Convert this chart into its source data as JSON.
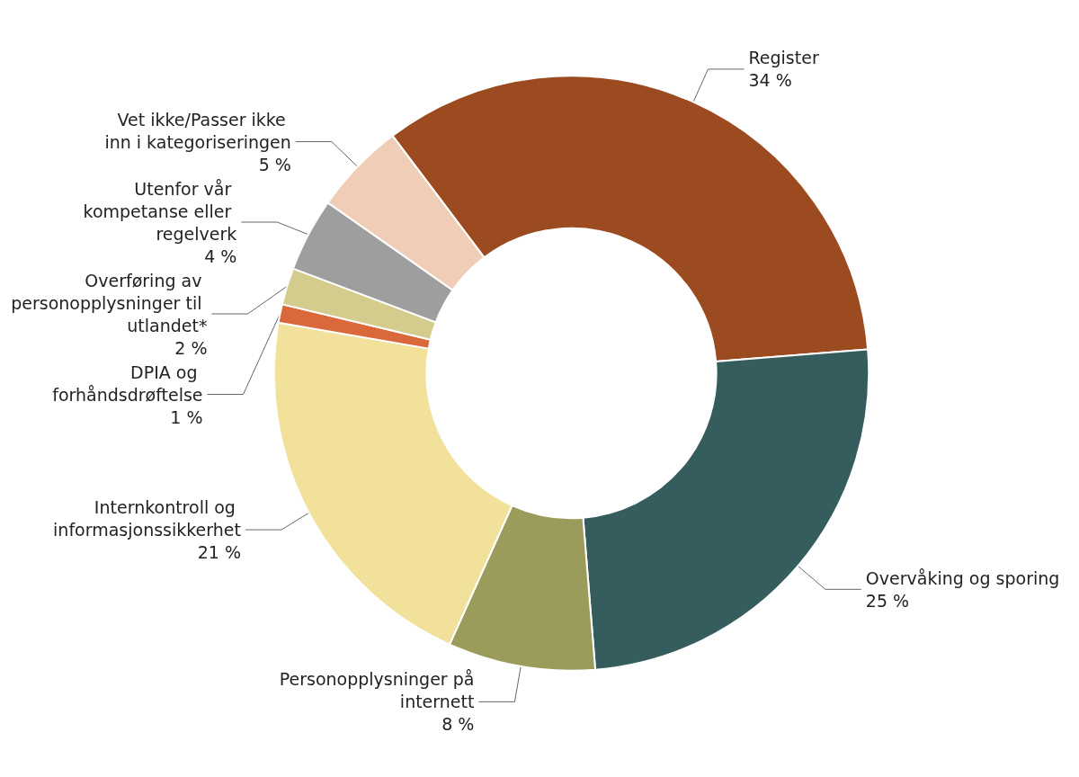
{
  "chart_data": {
    "type": "donut",
    "categories": [
      "Register",
      "Overvåking og sporing",
      "Personopplysninger på internett",
      "Internkontroll og informasjonssikkerhet",
      "DPIA og forhåndsdrøftelse",
      "Overføring av personopplysninger til utlandet*",
      "Utenfor vår kompetanse eller regelverk",
      "Vet ikke/Passer ikke inn i kategoriseringen"
    ],
    "values": [
      34,
      25,
      8,
      21,
      1,
      2,
      4,
      5
    ],
    "value_labels": [
      "34 %",
      "25 %",
      "8 %",
      "21 %",
      "1 %",
      "2 %",
      "4 %",
      "5 %"
    ],
    "colors": [
      "#9c4a20",
      "#365d5e",
      "#9b9b5c",
      "#f1e19b",
      "#d9693a",
      "#d4cc8c",
      "#9e9e9e",
      "#efcdb6"
    ],
    "legend": false
  }
}
